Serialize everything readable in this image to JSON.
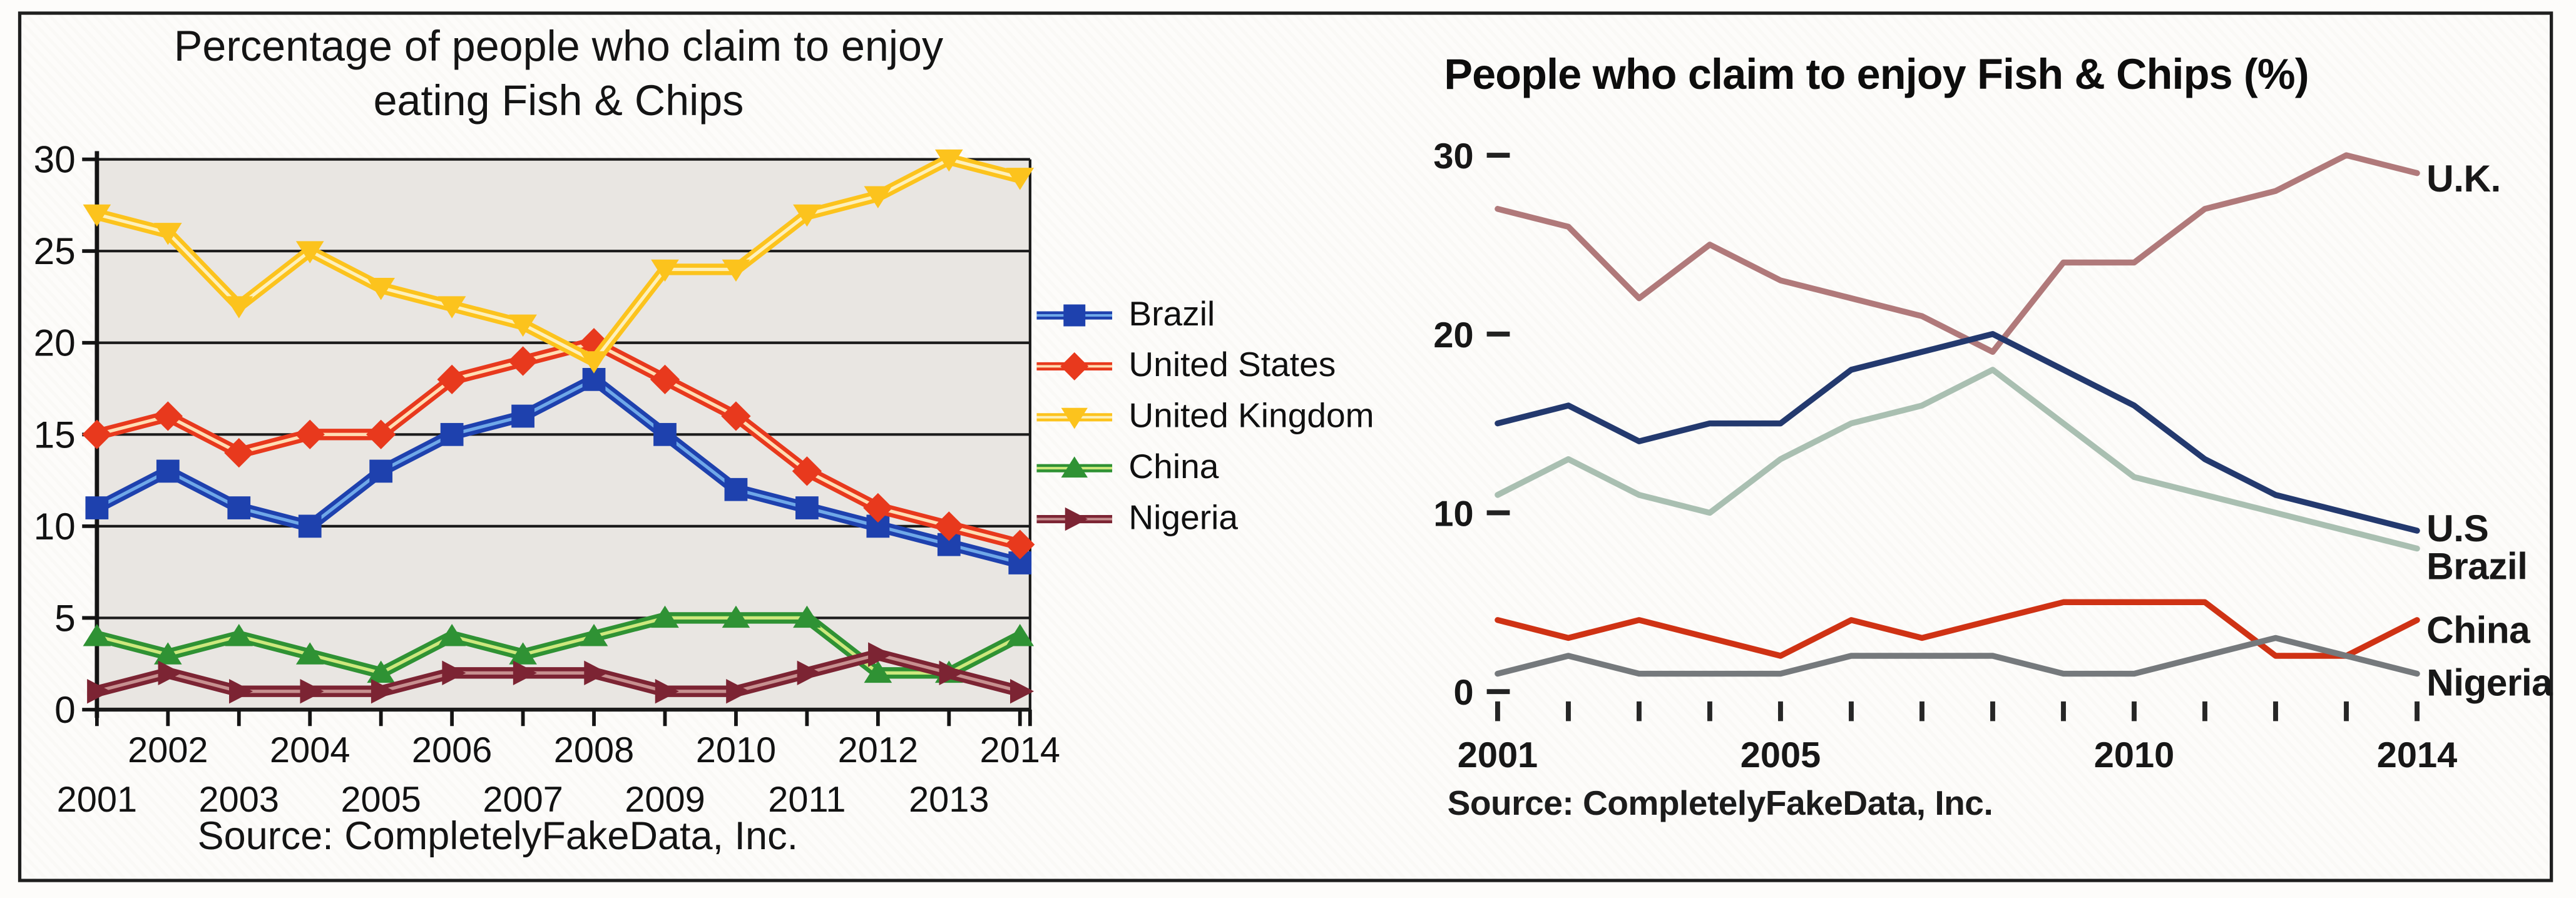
{
  "page": {
    "background": "#fdfcfa",
    "frame_border_color": "#1f1f1f"
  },
  "chart_data": [
    {
      "id": "left-chart",
      "type": "line",
      "style": "excel-classic",
      "title_lines": [
        "Percentage of people who claim to enjoy",
        "eating Fish & Chips"
      ],
      "source": "Source: CompletelyFakeData, Inc.",
      "x_years": [
        2001,
        2002,
        2003,
        2004,
        2005,
        2006,
        2007,
        2008,
        2009,
        2010,
        2011,
        2012,
        2013,
        2014
      ],
      "xtick_label_rows": [
        [
          "2002",
          "2004",
          "2006",
          "2008",
          "2010",
          "2012",
          "2014"
        ],
        [
          "2001",
          "2003",
          "2005",
          "2007",
          "2009",
          "2011",
          "2013"
        ]
      ],
      "yticks": [
        0,
        5,
        10,
        15,
        20,
        25,
        30
      ],
      "ylim": [
        0,
        30
      ],
      "grid": true,
      "plot_bg": "#e9e6e2",
      "grid_color": "#1b1b1b",
      "legend_position": "right",
      "series": [
        {
          "name": "Brazil",
          "marker": "square",
          "color": "#1e41ae",
          "inner_color": "#6fa8e8",
          "values": [
            11,
            13,
            11,
            10,
            13,
            15,
            16,
            18,
            15,
            12,
            11,
            10,
            9,
            8
          ]
        },
        {
          "name": "United States",
          "marker": "diamond",
          "color": "#e8391d",
          "inner_color": "#ffddb4",
          "values": [
            15,
            16,
            14,
            15,
            15,
            18,
            19,
            20,
            18,
            16,
            13,
            11,
            10,
            9
          ]
        },
        {
          "name": "United Kingdom",
          "marker": "triangle-down",
          "color": "#fcc31d",
          "inner_color": "#fdf0bb",
          "values": [
            27,
            26,
            22,
            25,
            23,
            22,
            21,
            19,
            24,
            24,
            27,
            28,
            30,
            29
          ]
        },
        {
          "name": "China",
          "marker": "triangle-up",
          "color": "#2f9234",
          "inner_color": "#cde87d",
          "values": [
            4,
            3,
            4,
            3,
            2,
            4,
            3,
            4,
            5,
            5,
            5,
            2,
            2,
            4
          ]
        },
        {
          "name": "Nigeria",
          "marker": "triangle-right",
          "color": "#7c2433",
          "inner_color": "#c79090",
          "values": [
            1,
            2,
            1,
            1,
            1,
            2,
            2,
            2,
            1,
            1,
            2,
            3,
            2,
            1
          ]
        }
      ]
    },
    {
      "id": "right-chart",
      "type": "line",
      "style": "minimal-redesign",
      "title": "People who claim to enjoy Fish & Chips (%)",
      "source": "Source: CompletelyFakeData, Inc.",
      "x_years": [
        2001,
        2002,
        2003,
        2004,
        2005,
        2006,
        2007,
        2008,
        2009,
        2010,
        2011,
        2012,
        2013,
        2014
      ],
      "xtick_labels": [
        "2001",
        "2005",
        "2010",
        "2014"
      ],
      "xtick_label_years": [
        2001,
        2005,
        2010,
        2014
      ],
      "yticks": [
        0,
        10,
        20,
        30
      ],
      "ylim": [
        0,
        30
      ],
      "grid": false,
      "direct_labels": true,
      "series": [
        {
          "name": "U.K.",
          "color": "#b0797a",
          "values": [
            27,
            26,
            22,
            25,
            23,
            22,
            21,
            19,
            24,
            24,
            27,
            28,
            30,
            29
          ]
        },
        {
          "name": "U.S",
          "color": "#23396e",
          "values": [
            15,
            16,
            14,
            15,
            15,
            18,
            19,
            20,
            18,
            16,
            13,
            11,
            10,
            9
          ]
        },
        {
          "name": "Brazil",
          "color": "#a9bfb1",
          "values": [
            11,
            13,
            11,
            10,
            13,
            15,
            16,
            18,
            15,
            12,
            11,
            10,
            9,
            8
          ]
        },
        {
          "name": "China",
          "color": "#cf3214",
          "values": [
            4,
            3,
            4,
            3,
            2,
            4,
            3,
            4,
            5,
            5,
            5,
            2,
            2,
            4
          ]
        },
        {
          "name": "Nigeria",
          "color": "#75797c",
          "values": [
            1,
            2,
            1,
            1,
            1,
            2,
            2,
            2,
            1,
            1,
            2,
            3,
            2,
            1
          ]
        }
      ]
    }
  ]
}
